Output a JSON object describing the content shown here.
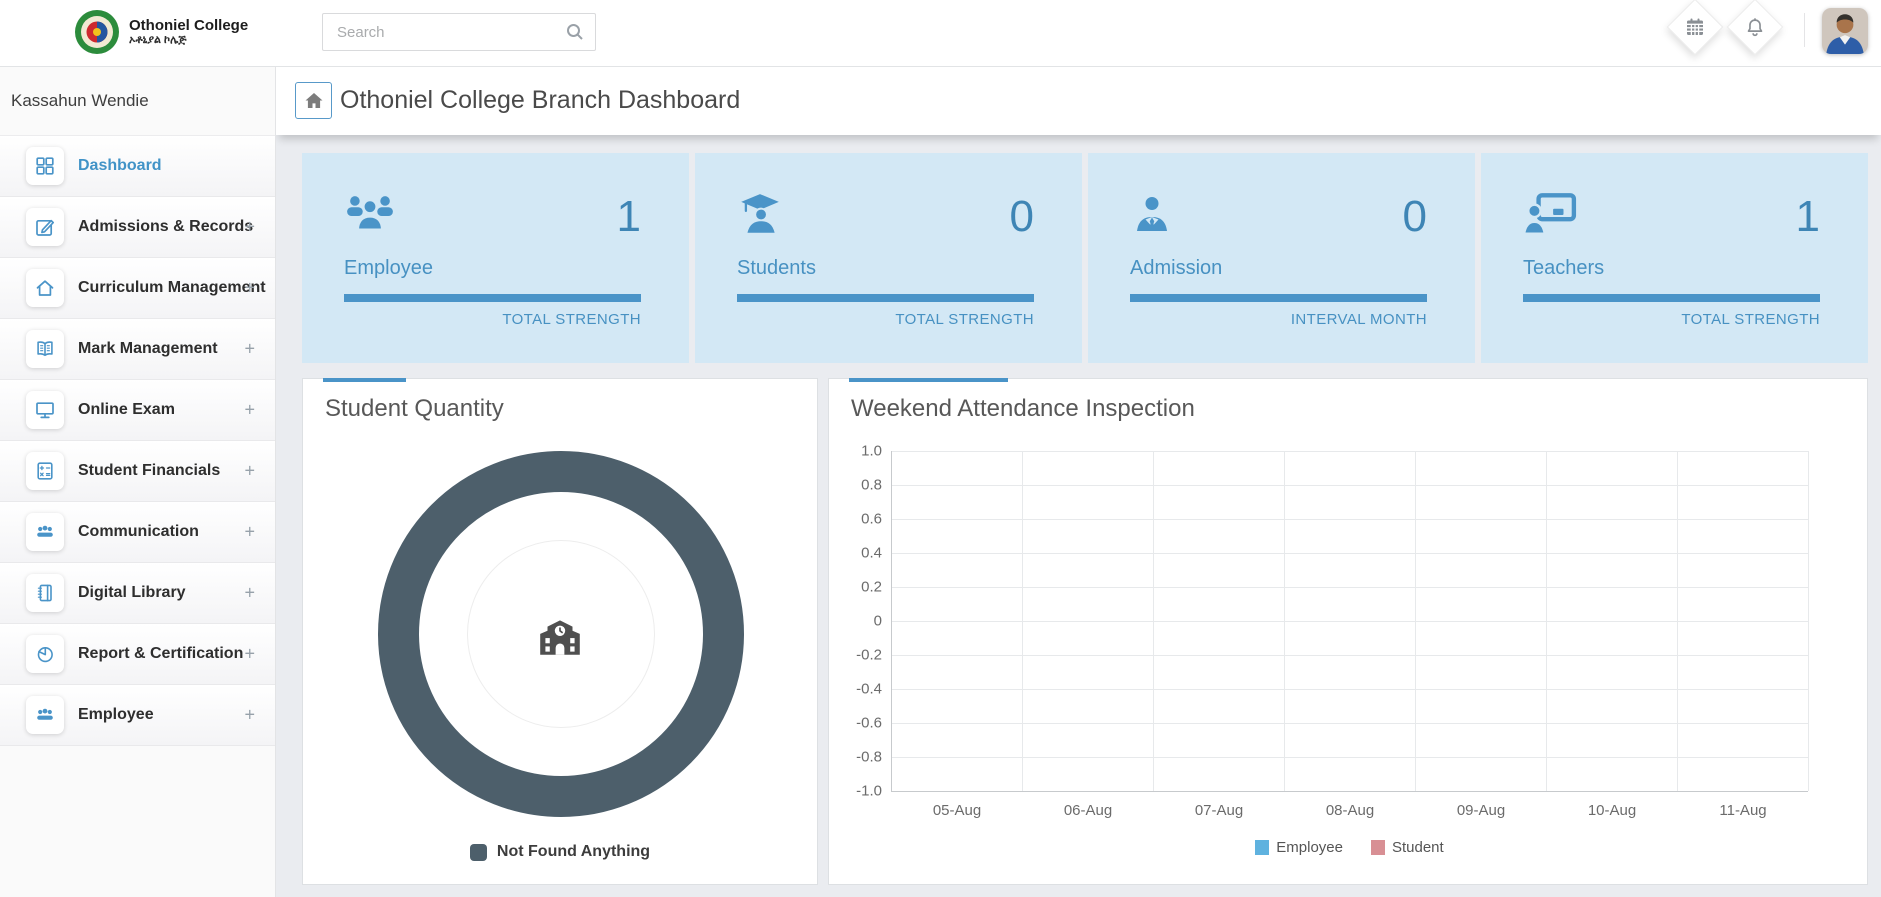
{
  "header": {
    "brand": {
      "title": "Othoniel College",
      "subtitle": "ኦቶኒያል ኮሌጅ"
    },
    "search_placeholder": "Search",
    "action_icons": [
      "calendar-icon",
      "bell-icon"
    ],
    "avatar": "user-photo"
  },
  "sidebar": {
    "user_name": "Kassahun Wendie",
    "items": [
      {
        "label": "Dashboard",
        "icon": "grid-icon",
        "expand": "",
        "active": true
      },
      {
        "label": "Admissions & Records",
        "icon": "edit-icon",
        "expand": "+"
      },
      {
        "label": "Curriculum Management",
        "icon": "home-icon",
        "expand": "+"
      },
      {
        "label": "Mark Management",
        "icon": "open-book-icon",
        "expand": "+"
      },
      {
        "label": "Online Exam",
        "icon": "monitor-icon",
        "expand": "+"
      },
      {
        "label": "Student Financials",
        "icon": "calculator-icon",
        "expand": "+"
      },
      {
        "label": "Communication",
        "icon": "people-icon",
        "expand": "+"
      },
      {
        "label": "Digital Library",
        "icon": "notebook-icon",
        "expand": "+"
      },
      {
        "label": "Report & Certification",
        "icon": "pie-chart-icon",
        "expand": "+"
      },
      {
        "label": "Employee",
        "icon": "people-icon",
        "expand": "+"
      }
    ]
  },
  "page": {
    "title": "Othoniel College Branch Dashboard"
  },
  "stat_cards": [
    {
      "label": "Employee",
      "value": "1",
      "caption": "TOTAL STRENGTH",
      "icon": "people-group-icon"
    },
    {
      "label": "Students",
      "value": "0",
      "caption": "TOTAL STRENGTH",
      "icon": "graduate-icon"
    },
    {
      "label": "Admission",
      "value": "0",
      "caption": "INTERVAL MONTH",
      "icon": "person-tie-icon"
    },
    {
      "label": "Teachers",
      "value": "1",
      "caption": "TOTAL STRENGTH",
      "icon": "teacher-board-icon"
    }
  ],
  "panels": {
    "student_quantity": {
      "title": "Student Quantity"
    },
    "attendance": {
      "title": "Weekend Attendance Inspection"
    }
  },
  "chart_data": [
    {
      "type": "pie",
      "title": "Student Quantity",
      "categories": [
        "Not Found Anything"
      ],
      "values": [
        100
      ],
      "colors": [
        "#4d5f6b"
      ],
      "legend_position": "bottom",
      "center_icon": "school-icon",
      "note": "empty-state donut, single full ring"
    },
    {
      "type": "line",
      "title": "Weekend Attendance Inspection",
      "categories": [
        "05-Aug",
        "06-Aug",
        "07-Aug",
        "08-Aug",
        "09-Aug",
        "10-Aug",
        "11-Aug"
      ],
      "series": [
        {
          "name": "Employee",
          "values": [],
          "color": "#5fb2df"
        },
        {
          "name": "Student",
          "values": [],
          "color": "#d88f94"
        }
      ],
      "ylim": [
        -1.0,
        1.0
      ],
      "yticks": [
        "1.0",
        "0.8",
        "0.6",
        "0.4",
        "0.2",
        "0",
        "-0.2",
        "-0.4",
        "-0.6",
        "-0.8",
        "-1.0"
      ],
      "grid": true,
      "legend_position": "bottom"
    }
  ],
  "colors": {
    "accent_blue": "#4a94c8",
    "card_bg": "#d3e8f5",
    "donut": "#4d5f6b",
    "page_bg": "#eaecf0",
    "grid_line": "#e7e9eb"
  }
}
